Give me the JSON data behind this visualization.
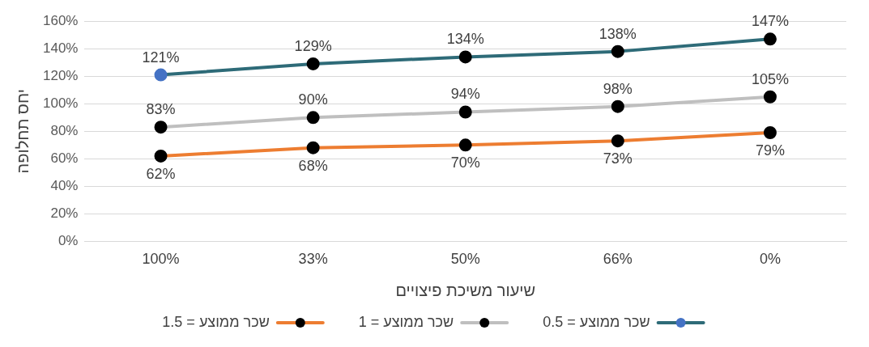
{
  "chart_data": {
    "type": "line",
    "xlabel": "שיעור משיכת פיצויים",
    "ylabel": "יחס תחלופה",
    "categories": [
      "100%",
      "33%",
      "50%",
      "66%",
      "0%"
    ],
    "series": [
      {
        "name": "שכר ממוצע = 0.5",
        "color": "#2e6b78",
        "colors": [
          "#4472c4",
          "#000000",
          "#000000",
          "#000000",
          "#000000"
        ],
        "values": [
          121,
          129,
          134,
          138,
          147
        ],
        "value_labels": [
          "121%",
          "129%",
          "134%",
          "138%",
          "147%"
        ]
      },
      {
        "name": "שכר ממוצע = 1",
        "color": "#bfbfbf",
        "colors": [
          "#000000",
          "#000000",
          "#000000",
          "#000000",
          "#000000"
        ],
        "values": [
          83,
          90,
          94,
          98,
          105
        ],
        "value_labels": [
          "83%",
          "90%",
          "94%",
          "98%",
          "105%"
        ]
      },
      {
        "name": "שכר ממוצע = 1.5",
        "color": "#ed7d31",
        "colors": [
          "#000000",
          "#000000",
          "#000000",
          "#000000",
          "#000000"
        ],
        "values": [
          62,
          68,
          70,
          73,
          79
        ],
        "value_labels": [
          "62%",
          "68%",
          "70%",
          "73%",
          "79%"
        ]
      }
    ],
    "ylim": [
      0,
      160
    ],
    "yticks": [
      {
        "value": 0,
        "label": "0%"
      },
      {
        "value": 20,
        "label": "20%"
      },
      {
        "value": 40,
        "label": "40%"
      },
      {
        "value": 60,
        "label": "60%"
      },
      {
        "value": 80,
        "label": "80%"
      },
      {
        "value": 100,
        "label": "100%"
      },
      {
        "value": 120,
        "label": "120%"
      },
      {
        "value": 140,
        "label": "140%"
      },
      {
        "value": 160,
        "label": "160%"
      }
    ],
    "grid": "y",
    "legend": "bottom",
    "marker": "circle",
    "line_style": "solid"
  }
}
